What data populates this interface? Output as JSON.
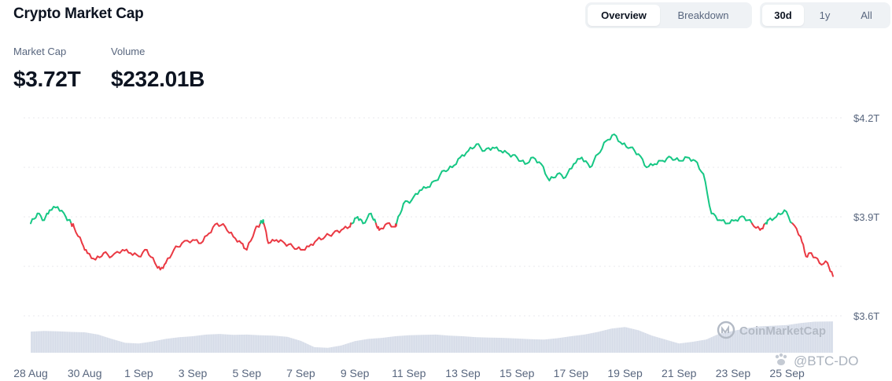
{
  "header": {
    "title": "Crypto Market Cap",
    "view_tabs": [
      {
        "label": "Overview",
        "active": true
      },
      {
        "label": "Breakdown",
        "active": false
      }
    ],
    "range_tabs": [
      {
        "label": "30d",
        "active": true
      },
      {
        "label": "1y",
        "active": false
      },
      {
        "label": "All",
        "active": false
      }
    ]
  },
  "stats": {
    "market_cap": {
      "label": "Market Cap",
      "value": "$3.72T"
    },
    "volume": {
      "label": "Volume",
      "value": "$232.01B"
    }
  },
  "watermark": {
    "text": "CoinMarketCap",
    "icon": "coinmarketcap-logo-icon"
  },
  "credit": {
    "text": "@BTC-DO"
  },
  "colors": {
    "up": "#16c784",
    "down": "#ea3943",
    "volume": "#cfd6e4",
    "grid": "#e8eaed",
    "text": "#58667e"
  },
  "chart_data": {
    "type": "line",
    "baseline": 3.88,
    "ylim": [
      3.6,
      4.2
    ],
    "y_ticks": [
      {
        "value": 4.2,
        "label": "$4.2T"
      },
      {
        "value": 3.9,
        "label": "$3.9T"
      },
      {
        "value": 3.6,
        "label": "$3.6T"
      }
    ],
    "x_ticks": [
      {
        "day": 0,
        "label": "28 Aug"
      },
      {
        "day": 2,
        "label": "30 Aug"
      },
      {
        "day": 4,
        "label": "1 Sep"
      },
      {
        "day": 6,
        "label": "3 Sep"
      },
      {
        "day": 8,
        "label": "5 Sep"
      },
      {
        "day": 10,
        "label": "7 Sep"
      },
      {
        "day": 12,
        "label": "9 Sep"
      },
      {
        "day": 14,
        "label": "11 Sep"
      },
      {
        "day": 16,
        "label": "13 Sep"
      },
      {
        "day": 18,
        "label": "15 Sep"
      },
      {
        "day": 20,
        "label": "17 Sep"
      },
      {
        "day": 22,
        "label": "19 Sep"
      },
      {
        "day": 24,
        "label": "21 Sep"
      },
      {
        "day": 26,
        "label": "23 Sep"
      },
      {
        "day": 28,
        "label": "25 Sep"
      }
    ],
    "series": [
      {
        "values_day_t": [
          [
            0.0,
            3.88
          ],
          [
            0.25,
            3.91
          ],
          [
            0.5,
            3.89
          ],
          [
            0.7,
            3.92
          ],
          [
            1.0,
            3.93
          ],
          [
            1.3,
            3.9
          ],
          [
            1.6,
            3.87
          ],
          [
            1.9,
            3.82
          ],
          [
            2.1,
            3.79
          ],
          [
            2.4,
            3.77
          ],
          [
            2.7,
            3.79
          ],
          [
            3.0,
            3.78
          ],
          [
            3.4,
            3.8
          ],
          [
            3.7,
            3.79
          ],
          [
            4.0,
            3.78
          ],
          [
            4.3,
            3.8
          ],
          [
            4.6,
            3.76
          ],
          [
            4.8,
            3.74
          ],
          [
            5.0,
            3.76
          ],
          [
            5.3,
            3.8
          ],
          [
            5.6,
            3.82
          ],
          [
            6.0,
            3.83
          ],
          [
            6.3,
            3.82
          ],
          [
            6.6,
            3.85
          ],
          [
            6.9,
            3.88
          ],
          [
            7.2,
            3.87
          ],
          [
            7.5,
            3.84
          ],
          [
            7.8,
            3.82
          ],
          [
            8.0,
            3.8
          ],
          [
            8.3,
            3.86
          ],
          [
            8.6,
            3.89
          ],
          [
            8.8,
            3.82
          ],
          [
            9.1,
            3.83
          ],
          [
            9.4,
            3.82
          ],
          [
            9.7,
            3.81
          ],
          [
            10.0,
            3.8
          ],
          [
            10.3,
            3.81
          ],
          [
            10.6,
            3.83
          ],
          [
            10.9,
            3.84
          ],
          [
            11.2,
            3.85
          ],
          [
            11.5,
            3.86
          ],
          [
            11.8,
            3.87
          ],
          [
            12.1,
            3.9
          ],
          [
            12.3,
            3.88
          ],
          [
            12.6,
            3.91
          ],
          [
            12.9,
            3.86
          ],
          [
            13.2,
            3.88
          ],
          [
            13.5,
            3.87
          ],
          [
            13.8,
            3.94
          ],
          [
            14.1,
            3.95
          ],
          [
            14.4,
            3.98
          ],
          [
            14.7,
            3.99
          ],
          [
            15.0,
            4.01
          ],
          [
            15.3,
            4.04
          ],
          [
            15.6,
            4.05
          ],
          [
            15.9,
            4.08
          ],
          [
            16.2,
            4.1
          ],
          [
            16.5,
            4.12
          ],
          [
            16.8,
            4.1
          ],
          [
            17.1,
            4.11
          ],
          [
            17.4,
            4.1
          ],
          [
            17.7,
            4.09
          ],
          [
            18.0,
            4.08
          ],
          [
            18.3,
            4.06
          ],
          [
            18.6,
            4.08
          ],
          [
            18.9,
            4.06
          ],
          [
            19.2,
            4.01
          ],
          [
            19.5,
            4.03
          ],
          [
            19.8,
            4.02
          ],
          [
            20.1,
            4.06
          ],
          [
            20.4,
            4.08
          ],
          [
            20.7,
            4.05
          ],
          [
            21.0,
            4.09
          ],
          [
            21.3,
            4.13
          ],
          [
            21.6,
            4.15
          ],
          [
            21.9,
            4.12
          ],
          [
            22.2,
            4.11
          ],
          [
            22.5,
            4.09
          ],
          [
            22.8,
            4.05
          ],
          [
            23.1,
            4.06
          ],
          [
            23.4,
            4.07
          ],
          [
            23.7,
            4.08
          ],
          [
            24.0,
            4.07
          ],
          [
            24.3,
            4.08
          ],
          [
            24.6,
            4.07
          ],
          [
            24.9,
            4.03
          ],
          [
            25.2,
            3.91
          ],
          [
            25.5,
            3.89
          ],
          [
            25.8,
            3.88
          ],
          [
            26.1,
            3.89
          ],
          [
            26.4,
            3.9
          ],
          [
            26.7,
            3.88
          ],
          [
            27.0,
            3.86
          ],
          [
            27.3,
            3.89
          ],
          [
            27.6,
            3.9
          ],
          [
            27.9,
            3.92
          ],
          [
            28.2,
            3.88
          ],
          [
            28.5,
            3.84
          ],
          [
            28.7,
            3.78
          ],
          [
            28.9,
            3.79
          ],
          [
            29.2,
            3.76
          ],
          [
            29.5,
            3.76
          ],
          [
            29.7,
            3.72
          ]
        ]
      }
    ],
    "volume_rel": [
      [
        0.0,
        0.64
      ],
      [
        0.5,
        0.66
      ],
      [
        1.0,
        0.65
      ],
      [
        1.5,
        0.63
      ],
      [
        2.0,
        0.62
      ],
      [
        2.5,
        0.55
      ],
      [
        3.0,
        0.42
      ],
      [
        3.5,
        0.3
      ],
      [
        4.0,
        0.28
      ],
      [
        4.5,
        0.34
      ],
      [
        5.0,
        0.42
      ],
      [
        5.5,
        0.47
      ],
      [
        6.0,
        0.5
      ],
      [
        6.5,
        0.55
      ],
      [
        7.0,
        0.57
      ],
      [
        7.5,
        0.54
      ],
      [
        8.0,
        0.55
      ],
      [
        8.5,
        0.53
      ],
      [
        9.0,
        0.52
      ],
      [
        9.5,
        0.48
      ],
      [
        10.0,
        0.36
      ],
      [
        10.5,
        0.17
      ],
      [
        11.0,
        0.15
      ],
      [
        11.5,
        0.22
      ],
      [
        12.0,
        0.35
      ],
      [
        12.5,
        0.42
      ],
      [
        13.0,
        0.45
      ],
      [
        13.5,
        0.5
      ],
      [
        14.0,
        0.53
      ],
      [
        14.5,
        0.54
      ],
      [
        15.0,
        0.55
      ],
      [
        15.5,
        0.52
      ],
      [
        16.0,
        0.5
      ],
      [
        16.5,
        0.47
      ],
      [
        17.0,
        0.46
      ],
      [
        17.5,
        0.45
      ],
      [
        18.0,
        0.43
      ],
      [
        18.5,
        0.41
      ],
      [
        19.0,
        0.4
      ],
      [
        19.5,
        0.44
      ],
      [
        20.0,
        0.5
      ],
      [
        20.5,
        0.55
      ],
      [
        21.0,
        0.63
      ],
      [
        21.5,
        0.73
      ],
      [
        22.0,
        0.78
      ],
      [
        22.5,
        0.68
      ],
      [
        23.0,
        0.52
      ],
      [
        23.5,
        0.4
      ],
      [
        24.0,
        0.28
      ],
      [
        24.5,
        0.33
      ],
      [
        25.0,
        0.4
      ],
      [
        25.5,
        0.58
      ],
      [
        26.0,
        0.66
      ],
      [
        26.5,
        0.74
      ],
      [
        27.0,
        0.8
      ],
      [
        27.5,
        0.82
      ],
      [
        28.0,
        0.84
      ],
      [
        28.5,
        0.9
      ],
      [
        29.0,
        0.94
      ],
      [
        29.7,
        0.95
      ]
    ]
  }
}
